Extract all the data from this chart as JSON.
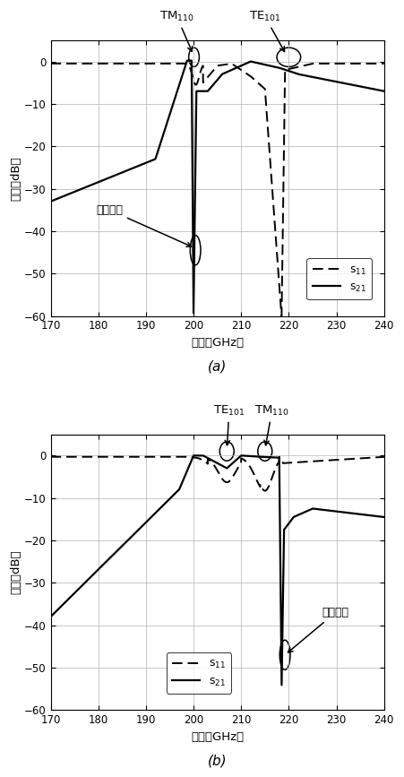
{
  "fig_width": 4.51,
  "fig_height": 8.67,
  "dpi": 100,
  "xlim": [
    170,
    240
  ],
  "ylim": [
    -60,
    5
  ],
  "xticks": [
    170,
    180,
    190,
    200,
    210,
    220,
    230,
    240
  ],
  "yticks": [
    -60,
    -50,
    -40,
    -30,
    -20,
    -10,
    0
  ],
  "xlabel": "频率（GHz）",
  "ylabel": "幅度（dB）",
  "label_a": "(a)",
  "label_b": "(b)",
  "annotation_a": "传输零点",
  "annotation_b": "传输零点",
  "TM110": "TM$_{110}$",
  "TE101": "TE$_{101}$",
  "legend_s11": "s$_{11}$",
  "legend_s21": "s$_{21}$"
}
